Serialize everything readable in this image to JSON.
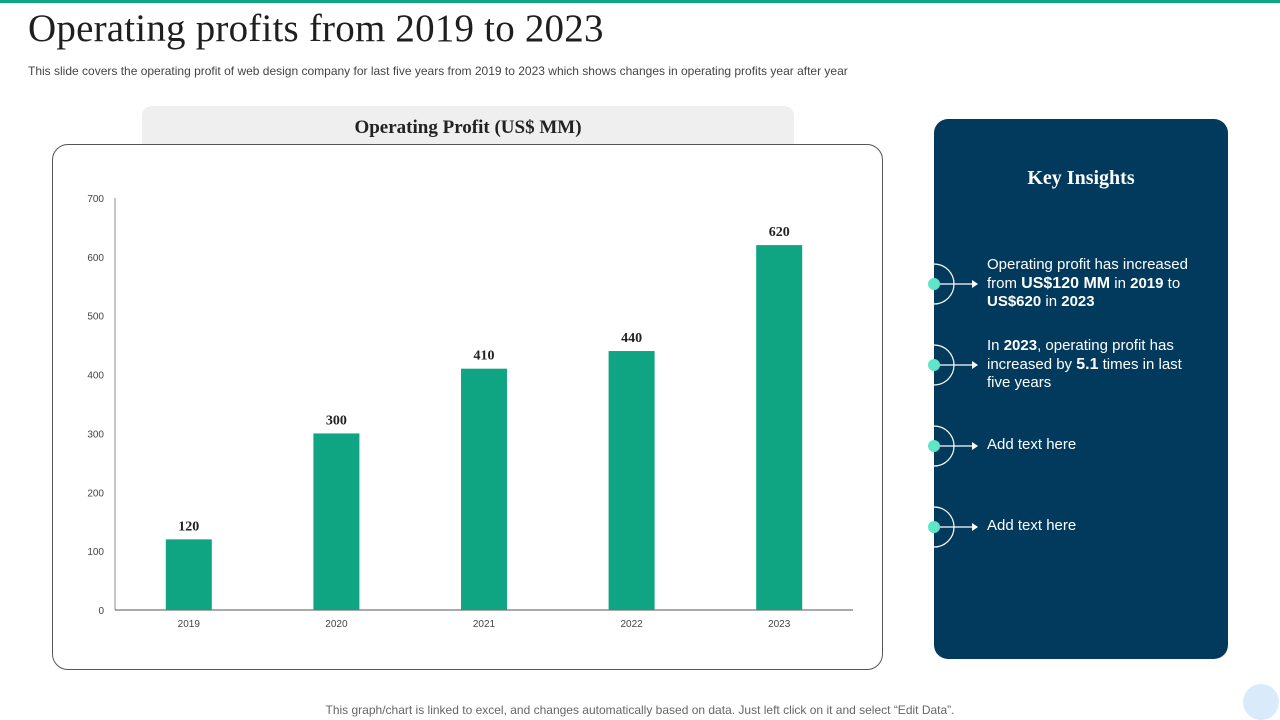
{
  "slide": {
    "title": "Operating profits from 2019 to 2023",
    "subtitle": "This slide covers the operating profit of web design company for last five years from 2019 to 2023 which shows changes in operating profits year after year",
    "footer_note": "This graph/chart is linked to excel,  and changes automatically based on data. Just left click on it and select “Edit Data”."
  },
  "chart_header": "Operating Profit (US$ MM)",
  "colors": {
    "accent": "#10a582",
    "panel": "#023a5e",
    "dot": "#5ee6c8"
  },
  "chart_data": {
    "type": "bar",
    "title": "Operating Profit (US$ MM)",
    "categories": [
      "2019",
      "2020",
      "2021",
      "2022",
      "2023"
    ],
    "values": [
      120,
      300,
      410,
      440,
      620
    ],
    "yticks": [
      0,
      100,
      200,
      300,
      400,
      500,
      600,
      700
    ],
    "ylim": [
      0,
      700
    ],
    "xlabel": "",
    "ylabel": "",
    "grid": false,
    "data_labels": true,
    "bar_color": "#10a582"
  },
  "insights": {
    "title": "Key Insights",
    "items": [
      {
        "segments": [
          {
            "text": "Operating profit has increased from ",
            "bold": false
          },
          {
            "text": "US$120 MM",
            "bold": true,
            "big": true
          },
          {
            "text": " in ",
            "bold": false
          },
          {
            "text": "2019",
            "bold": true
          },
          {
            "text": " to ",
            "bold": false
          },
          {
            "text": "US$620",
            "bold": true
          },
          {
            "text": " in ",
            "bold": false
          },
          {
            "text": "2023",
            "bold": true
          }
        ]
      },
      {
        "segments": [
          {
            "text": "In ",
            "bold": false
          },
          {
            "text": "2023",
            "bold": true
          },
          {
            "text": ", operating profit has increased by ",
            "bold": false
          },
          {
            "text": "5.1",
            "bold": true,
            "big": true
          },
          {
            "text": " times in last five years",
            "bold": false
          }
        ]
      },
      {
        "segments": [
          {
            "text": "Add text here",
            "bold": false
          }
        ]
      },
      {
        "segments": [
          {
            "text": "Add text here",
            "bold": false
          }
        ]
      }
    ]
  }
}
